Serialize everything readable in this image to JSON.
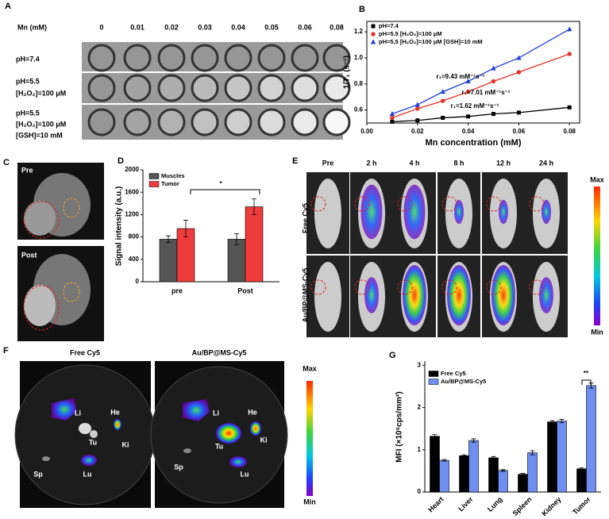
{
  "panels": {
    "A": {
      "label": "A",
      "header": "Mn (mM)",
      "concentrations": [
        "0",
        "0.01",
        "0.02",
        "0.03",
        "0.04",
        "0.05",
        "0.06",
        "0.08"
      ],
      "rows": [
        [
          "pH=7.4"
        ],
        [
          "pH=5.5",
          "[H₂O₂]=100 μM"
        ],
        [
          "pH=5.5",
          "[H₂O₂]=100 μM",
          "[GSH]=10 mM"
        ]
      ]
    },
    "C": {
      "label": "C",
      "images": [
        "Pre",
        "Post"
      ]
    },
    "E": {
      "label": "E",
      "columns": [
        "Pre",
        "2 h",
        "4 h",
        "8 h",
        "12 h",
        "24 h"
      ],
      "rows": [
        "Free Cy5",
        "Au/BP@MS-Cy5"
      ],
      "scale_max": "Max",
      "scale_min": "Min"
    },
    "F": {
      "label": "F",
      "images": [
        "Free Cy5",
        "Au/BP@MS-Cy5"
      ],
      "organs": [
        [
          "Li",
          "He",
          "Tu",
          "Ki",
          "Sp",
          "Lu"
        ],
        [
          "Li",
          "He",
          "Tu",
          "Ki",
          "Sp",
          "Lu"
        ]
      ],
      "scale_max": "Max",
      "scale_min": "Min"
    }
  },
  "chart_data": [
    {
      "type": "line",
      "label": "B",
      "xlabel": "Mn concentration (mM)",
      "ylabel": "1/T₁ (s⁻¹)",
      "x": [
        0.01,
        0.02,
        0.03,
        0.04,
        0.05,
        0.06,
        0.08
      ],
      "series": [
        {
          "name": "pH=7.4",
          "color": "#000000",
          "marker": "square",
          "values": [
            0.51,
            0.52,
            0.54,
            0.55,
            0.57,
            0.58,
            0.62
          ]
        },
        {
          "name": "pH=5.5  [H₂O₂]=100 μM",
          "color": "#e8312a",
          "marker": "circle",
          "values": [
            0.54,
            0.61,
            0.67,
            0.74,
            0.82,
            0.89,
            1.03
          ]
        },
        {
          "name": "pH=5.5  [H₂O₂]=100 μM  [GSH]=10 mM",
          "color": "#1f3fd6",
          "marker": "triangle",
          "values": [
            0.57,
            0.64,
            0.74,
            0.82,
            0.92,
            1.0,
            1.22
          ]
        }
      ],
      "annotations": [
        "r₁=9.43 mM⁻¹s⁻¹",
        "r₁=7.01 mM⁻¹s⁻¹",
        "r₁=1.62 mM⁻¹s⁻¹"
      ],
      "xlim": [
        0,
        0.084
      ],
      "xticks": [
        {
          "value": 0,
          "label": "0.00"
        },
        0.02,
        0.04,
        0.06,
        0.08
      ],
      "ylim": [
        0.5,
        1.28
      ],
      "yticks": [
        0.6,
        0.8,
        {
          "value": 1.0,
          "label": "1.0"
        },
        1.2
      ]
    },
    {
      "type": "bar",
      "label": "D",
      "ylabel": "Signal intensity (a.u.)",
      "categories": [
        "pre",
        "Post"
      ],
      "series": [
        {
          "name": "Muscles",
          "color": "#555555",
          "values": [
            760,
            760
          ],
          "errors": [
            60,
            100
          ]
        },
        {
          "name": "Tumor",
          "color": "#ee3b3b",
          "values": [
            950,
            1340
          ],
          "errors": [
            150,
            140
          ]
        }
      ],
      "annotations": [
        "*"
      ],
      "ylim": [
        0,
        2000
      ],
      "yticks": [
        0,
        400,
        800,
        1200,
        1600,
        2000
      ]
    },
    {
      "type": "bar",
      "label": "G",
      "ylabel": "MFI (×10⁶cps/mm²)",
      "categories": [
        "Heart",
        "Liver",
        "Lung",
        "Spleen",
        "Kidney",
        "Tumor"
      ],
      "series": [
        {
          "name": "Free Cy5",
          "color": "#000000",
          "values": [
            1.32,
            0.86,
            0.81,
            0.42,
            1.66,
            0.55
          ],
          "errors": [
            0.04,
            0.02,
            0.03,
            0.02,
            0.03,
            0.02
          ]
        },
        {
          "name": "Au/BP@MS-Cy5",
          "color": "#6f8ff0",
          "values": [
            0.75,
            1.22,
            0.51,
            0.93,
            1.68,
            2.52
          ],
          "errors": [
            0.02,
            0.04,
            0.02,
            0.05,
            0.04,
            0.06
          ]
        }
      ],
      "annotations": [
        "**"
      ],
      "ylim": [
        0,
        3.1
      ],
      "yticks": [
        0,
        1,
        2,
        3
      ]
    }
  ]
}
